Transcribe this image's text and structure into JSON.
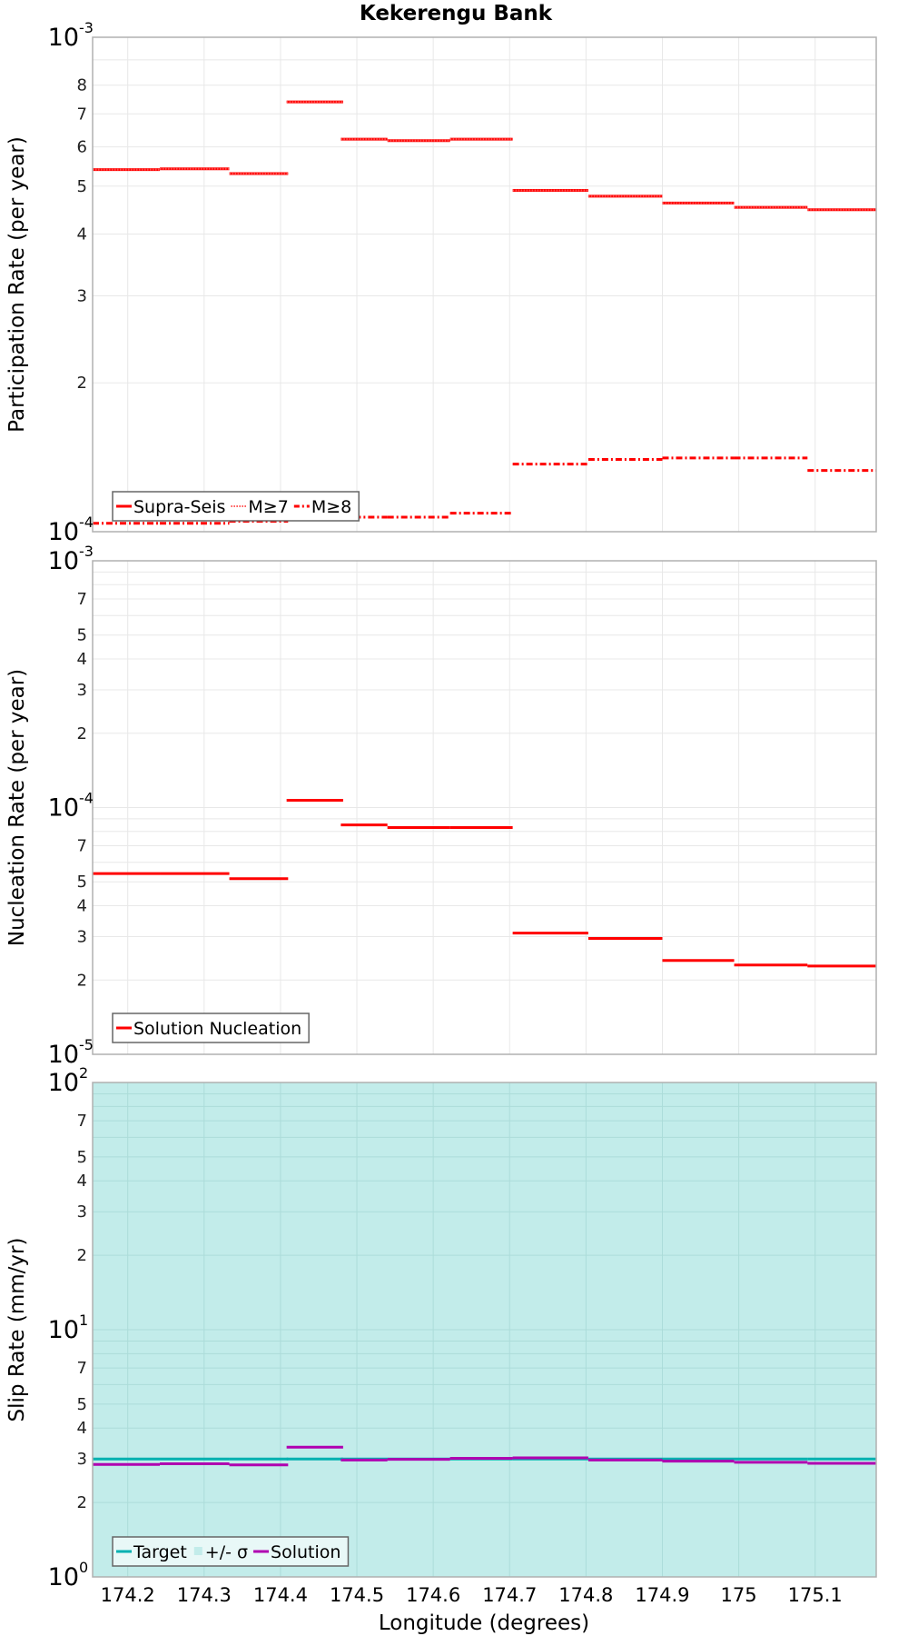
{
  "title": "Kekerengu Bank",
  "x_axis": {
    "label": "Longitude (degrees)",
    "ticks": [
      174.2,
      174.3,
      174.4,
      174.5,
      174.6,
      174.7,
      174.8,
      174.9,
      175,
      175.1
    ],
    "tick_labels": [
      "174.2",
      "174.3",
      "174.4",
      "174.5",
      "174.6",
      "174.7",
      "174.8",
      "174.9",
      "175",
      "175.1"
    ],
    "range": [
      174.154,
      175.18
    ]
  },
  "colors": {
    "solution_red": "#ff0000",
    "target_teal": "#00b0b0",
    "sigma_fill": "#c2ecea",
    "solution_purple": "#b000b0",
    "grid": "#e8e8e8",
    "frame": "#b0b0b0"
  },
  "chart_data": [
    {
      "type": "line",
      "title": "Kekerengu Bank",
      "ylabel": "Participation Rate (per year)",
      "xlabel": "",
      "yscale": "log",
      "ylim": [
        0.0001,
        0.001
      ],
      "y_major_labels": [
        {
          "base": "10",
          "exp": "-4",
          "value": 0.0001
        },
        {
          "base": "10",
          "exp": "-3",
          "value": 0.001
        }
      ],
      "y_minor_labels": [
        "2",
        "3",
        "4",
        "5",
        "6",
        "7",
        "8"
      ],
      "grid": true,
      "legend_position": "lower left",
      "segments_lon": [
        [
          174.154,
          174.242
        ],
        [
          174.242,
          174.333
        ],
        [
          174.333,
          174.41
        ],
        [
          174.408,
          174.482
        ],
        [
          174.479,
          174.54
        ],
        [
          174.54,
          174.622
        ],
        [
          174.622,
          174.704
        ],
        [
          174.704,
          174.803
        ],
        [
          174.803,
          174.9
        ],
        [
          174.9,
          174.994
        ],
        [
          174.994,
          175.09
        ],
        [
          175.09,
          175.18
        ]
      ],
      "series": [
        {
          "name": "Supra-Seis",
          "style": "solid",
          "values": [
            0.00054,
            0.000542,
            0.00053,
            0.00074,
            0.000622,
            0.000618,
            0.000622,
            0.00049,
            0.000477,
            0.000462,
            0.000453,
            0.000448
          ]
        },
        {
          "name": "M≥7",
          "style": "dotted",
          "values": [
            0.00054,
            0.000542,
            0.00053,
            0.00074,
            0.000622,
            0.000618,
            0.000622,
            0.00049,
            0.000477,
            0.000462,
            0.000453,
            0.000448
          ]
        },
        {
          "name": "M≥8",
          "style": "dashdot",
          "values": [
            0.000104,
            0.000104,
            0.000105,
            0.000106,
            0.000107,
            0.000107,
            0.000109,
            0.000137,
            0.00014,
            0.000141,
            0.000141,
            0.000133
          ]
        }
      ],
      "legend": [
        "Supra-Seis",
        "M≥7",
        "M≥8"
      ]
    },
    {
      "type": "line",
      "ylabel": "Nucleation Rate (per year)",
      "xlabel": "",
      "yscale": "log",
      "ylim": [
        1e-05,
        0.001
      ],
      "y_major_labels": [
        {
          "base": "10",
          "exp": "-5",
          "value": 1e-05
        },
        {
          "base": "10",
          "exp": "-4",
          "value": 0.0001
        },
        {
          "base": "10",
          "exp": "-3",
          "value": 0.001
        }
      ],
      "y_minor_labels": [
        "2",
        "3",
        "4",
        "5",
        "7"
      ],
      "grid": true,
      "legend_position": "lower left",
      "segments_lon": [
        [
          174.154,
          174.242
        ],
        [
          174.242,
          174.333
        ],
        [
          174.333,
          174.41
        ],
        [
          174.408,
          174.482
        ],
        [
          174.479,
          174.54
        ],
        [
          174.54,
          174.622
        ],
        [
          174.622,
          174.704
        ],
        [
          174.704,
          174.803
        ],
        [
          174.803,
          174.9
        ],
        [
          174.9,
          174.994
        ],
        [
          174.994,
          175.09
        ],
        [
          175.09,
          175.18
        ]
      ],
      "series": [
        {
          "name": "Solution Nucleation",
          "style": "solid",
          "values": [
            5.4e-05,
            5.4e-05,
            5.15e-05,
            0.000107,
            8.5e-05,
            8.3e-05,
            8.3e-05,
            3.1e-05,
            2.95e-05,
            2.4e-05,
            2.3e-05,
            2.28e-05
          ]
        }
      ],
      "legend": [
        "Solution Nucleation"
      ]
    },
    {
      "type": "line",
      "ylabel": "Slip Rate (mm/yr)",
      "xlabel": "Longitude (degrees)",
      "yscale": "log",
      "ylim": [
        1,
        100
      ],
      "y_major_labels": [
        {
          "base": "10",
          "exp": "0",
          "value": 1
        },
        {
          "base": "10",
          "exp": "1",
          "value": 10
        },
        {
          "base": "10",
          "exp": "2",
          "value": 100
        }
      ],
      "y_minor_labels": [
        "2",
        "3",
        "4",
        "5",
        "7"
      ],
      "grid": true,
      "legend_position": "lower left",
      "segments_lon": [
        [
          174.154,
          174.242
        ],
        [
          174.242,
          174.333
        ],
        [
          174.333,
          174.41
        ],
        [
          174.408,
          174.482
        ],
        [
          174.479,
          174.54
        ],
        [
          174.54,
          174.622
        ],
        [
          174.622,
          174.704
        ],
        [
          174.704,
          174.803
        ],
        [
          174.803,
          174.9
        ],
        [
          174.9,
          174.994
        ],
        [
          174.994,
          175.09
        ],
        [
          175.09,
          175.18
        ]
      ],
      "series": [
        {
          "name": "Target",
          "style": "solid",
          "values": [
            3.0,
            3.0,
            3.0,
            3.0,
            3.0,
            3.0,
            3.0,
            3.0,
            3.0,
            3.0,
            3.0,
            3.0
          ]
        },
        {
          "name": "+/- σ",
          "style": "fill",
          "lower": [
            1,
            1,
            1,
            1,
            1,
            1,
            1,
            1,
            1,
            1,
            1,
            1
          ],
          "upper": [
            100,
            100,
            100,
            100,
            100,
            100,
            100,
            100,
            100,
            100,
            100,
            100
          ]
        },
        {
          "name": "Solution",
          "style": "solid",
          "values": [
            2.85,
            2.87,
            2.84,
            3.35,
            2.97,
            2.99,
            3.02,
            3.03,
            2.97,
            2.94,
            2.91,
            2.88
          ]
        }
      ],
      "legend": [
        "Target",
        "+/- σ",
        "Solution"
      ]
    }
  ]
}
